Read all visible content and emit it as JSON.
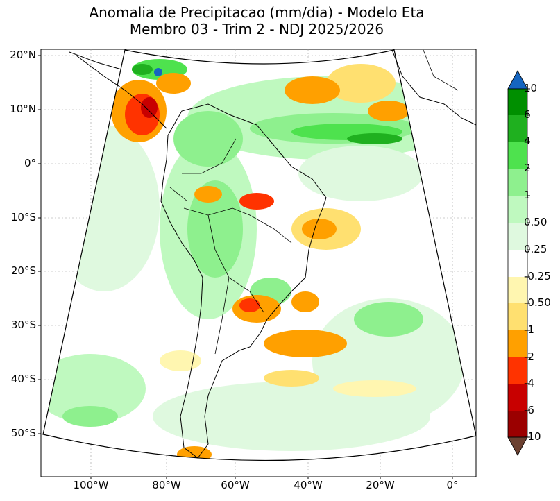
{
  "title": {
    "line1": "Anomalia de Precipitacao (mm/dia) - Modelo Eta",
    "line2": "Membro 03 - Trim 2 - NDJ 2025/2026"
  },
  "map": {
    "region": "South America and adjacent oceans",
    "lat_ticks": [
      "20°N",
      "10°N",
      "0°",
      "10°S",
      "20°S",
      "30°S",
      "40°S",
      "50°S"
    ],
    "lon_ticks": [
      "100°W",
      "80°W",
      "60°W",
      "40°W",
      "20°W",
      "0°"
    ]
  },
  "colorbar": {
    "labels": [
      "10",
      "6",
      "4",
      "2",
      "1",
      "0.50",
      "0.25",
      "-0.25",
      "-0.50",
      "-1",
      "-2",
      "-4",
      "-6",
      "-10"
    ],
    "colors": [
      "#1565c0",
      "#008f00",
      "#1fb01f",
      "#4ee24e",
      "#8ef08e",
      "#bff9bf",
      "#dff9df",
      "#ffffff",
      "#fff6b0",
      "#ffe070",
      "#ffa000",
      "#ff3300",
      "#c80000",
      "#9b0000",
      "#6b4030"
    ]
  }
}
